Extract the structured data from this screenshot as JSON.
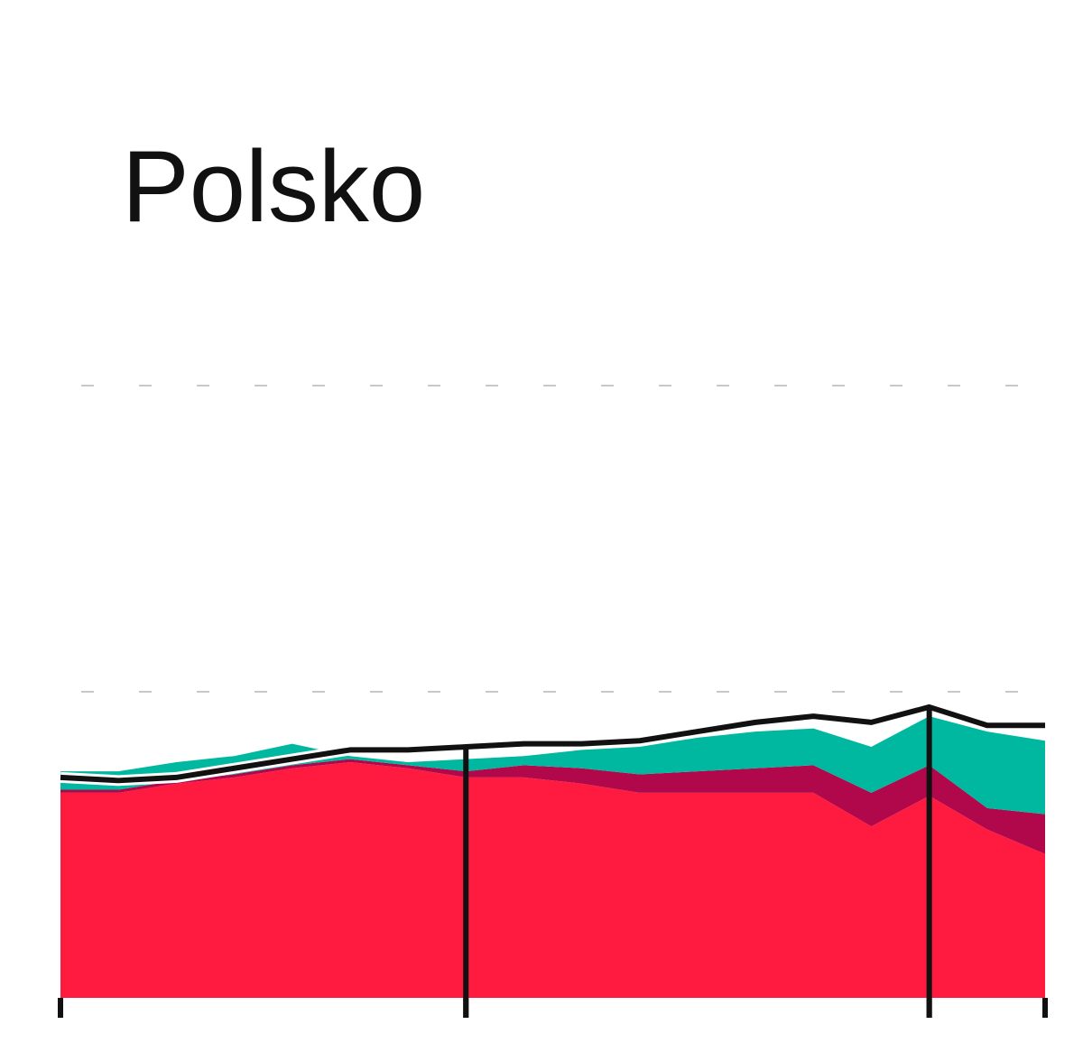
{
  "chart_data": {
    "type": "stacked-area-line",
    "title": "Polsko",
    "x": [
      0,
      1,
      2,
      3,
      4,
      5,
      6,
      7,
      8,
      9,
      10,
      11,
      12,
      13,
      14,
      15,
      16,
      17
    ],
    "xlim": [
      0,
      17
    ],
    "xticks": [
      0,
      7,
      15,
      17
    ],
    "vlines": [
      7,
      15
    ],
    "ylim": [
      0,
      2
    ],
    "yticks": [
      1,
      2
    ],
    "grid": true,
    "series": [
      {
        "color": "#ff1a40",
        "values": [
          0.67,
          0.67,
          0.7,
          0.72,
          0.75,
          0.77,
          0.75,
          0.72,
          0.72,
          0.7,
          0.67,
          0.67,
          0.67,
          0.67,
          0.56,
          0.66,
          0.55,
          0.47
        ]
      },
      {
        "color": "#b0084a",
        "values": [
          0.01,
          0.01,
          0.01,
          0.01,
          0.01,
          0.01,
          0.01,
          0.02,
          0.04,
          0.05,
          0.06,
          0.07,
          0.08,
          0.09,
          0.11,
          0.1,
          0.07,
          0.13
        ]
      },
      {
        "color": "#00b8a0",
        "values": [
          0.06,
          0.06,
          0.06,
          0.06,
          0.07,
          0.01,
          0.01,
          0.04,
          0.03,
          0.06,
          0.09,
          0.11,
          0.12,
          0.12,
          0.15,
          0.16,
          0.25,
          0.24
        ]
      }
    ],
    "line": {
      "color": "#111111",
      "values": [
        0.72,
        0.71,
        0.72,
        0.75,
        0.78,
        0.81,
        0.81,
        0.82,
        0.83,
        0.83,
        0.84,
        0.87,
        0.9,
        0.92,
        0.9,
        0.95,
        0.89,
        0.89
      ]
    }
  }
}
